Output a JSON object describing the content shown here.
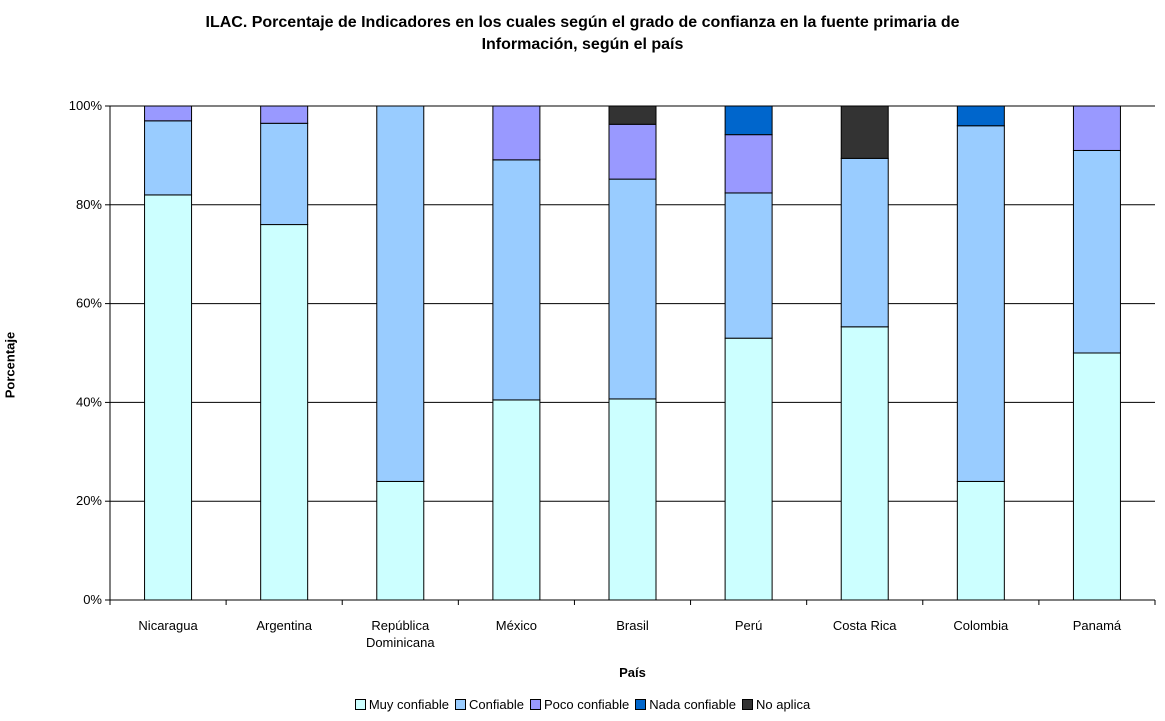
{
  "chart_data": {
    "type": "bar",
    "stacked": true,
    "percent": true,
    "title": "ILAC. Porcentaje de Indicadores en los cuales según el grado de confianza en la fuente primaria de Información, según el país",
    "title_lines": [
      "ILAC. Porcentaje de Indicadores en los cuales según el grado de confianza en la fuente primaria de",
      "Información, según el país"
    ],
    "xlabel": "País",
    "ylabel": "Porcentaje",
    "ylim": [
      0,
      100
    ],
    "yticks": [
      "0%",
      "20%",
      "40%",
      "60%",
      "80%",
      "100%"
    ],
    "grid": true,
    "legend_position": "bottom",
    "categories": [
      "Nicaragua",
      "Argentina",
      "República Dominicana",
      "México",
      "Brasil",
      "Perú",
      "Costa Rica",
      "Colombia",
      "Panamá"
    ],
    "category_lines": [
      [
        "Nicaragua"
      ],
      [
        "Argentina"
      ],
      [
        "República",
        "Dominicana"
      ],
      [
        "México"
      ],
      [
        "Brasil"
      ],
      [
        "Perú"
      ],
      [
        "Costa Rica"
      ],
      [
        "Colombia"
      ],
      [
        "Panamá"
      ]
    ],
    "series": [
      {
        "name": "Muy confiable",
        "color": "#ccffff",
        "values": [
          82,
          76,
          24,
          40.5,
          40.7,
          53,
          55.3,
          24,
          50
        ]
      },
      {
        "name": "Confiable",
        "color": "#99ccff",
        "values": [
          15,
          20.5,
          76,
          48.6,
          44.5,
          29.4,
          34.1,
          72,
          41
        ]
      },
      {
        "name": "Poco confiable",
        "color": "#9999ff",
        "values": [
          3,
          3.5,
          0,
          10.9,
          11.1,
          11.8,
          0,
          0,
          9
        ]
      },
      {
        "name": "Nada confiable",
        "color": "#0066cc",
        "values": [
          0,
          0,
          0,
          0,
          0,
          5.8,
          0,
          4,
          0
        ]
      },
      {
        "name": "No aplica",
        "color": "#333333",
        "values": [
          0,
          0,
          0,
          0,
          3.7,
          0,
          10.6,
          0,
          0
        ]
      }
    ]
  }
}
